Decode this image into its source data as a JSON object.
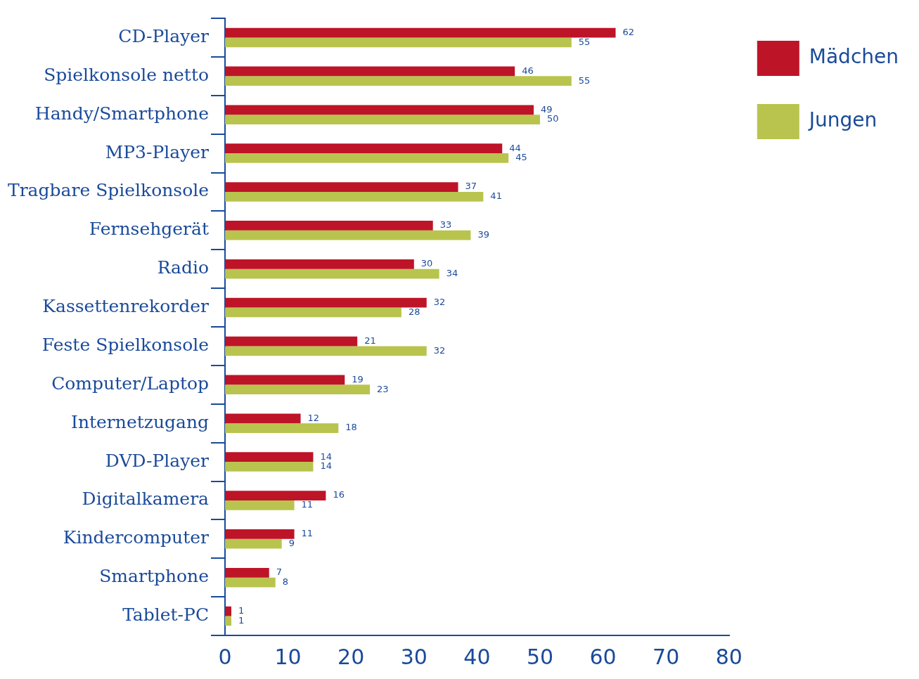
{
  "chart_data": {
    "type": "bar",
    "orientation": "horizontal",
    "categories": [
      "CD-Player",
      "Spielkonsole netto",
      "Handy/Smartphone",
      "MP3-Player",
      "Tragbare Spielkonsole",
      "Fernsehgerät",
      "Radio",
      "Kassettenrekorder",
      "Feste Spielkonsole",
      "Computer/Laptop",
      "Internetzugang",
      "DVD-Player",
      "Digitalkamera",
      "Kindercomputer",
      "Smartphone",
      "Tablet-PC"
    ],
    "series": [
      {
        "name": "Mädchen",
        "color": "#be1428",
        "values": [
          62,
          46,
          49,
          44,
          37,
          33,
          30,
          32,
          21,
          19,
          12,
          14,
          16,
          11,
          7,
          1
        ]
      },
      {
        "name": "Jungen",
        "color": "#b8c44e",
        "values": [
          55,
          55,
          50,
          45,
          41,
          39,
          34,
          28,
          32,
          23,
          18,
          14,
          11,
          9,
          8,
          1
        ]
      }
    ],
    "xlim": [
      0,
      80
    ],
    "xticks": [
      0,
      10,
      20,
      30,
      40,
      50,
      60,
      70,
      80
    ],
    "grid": false,
    "legend": "top right",
    "data_labels": true
  }
}
